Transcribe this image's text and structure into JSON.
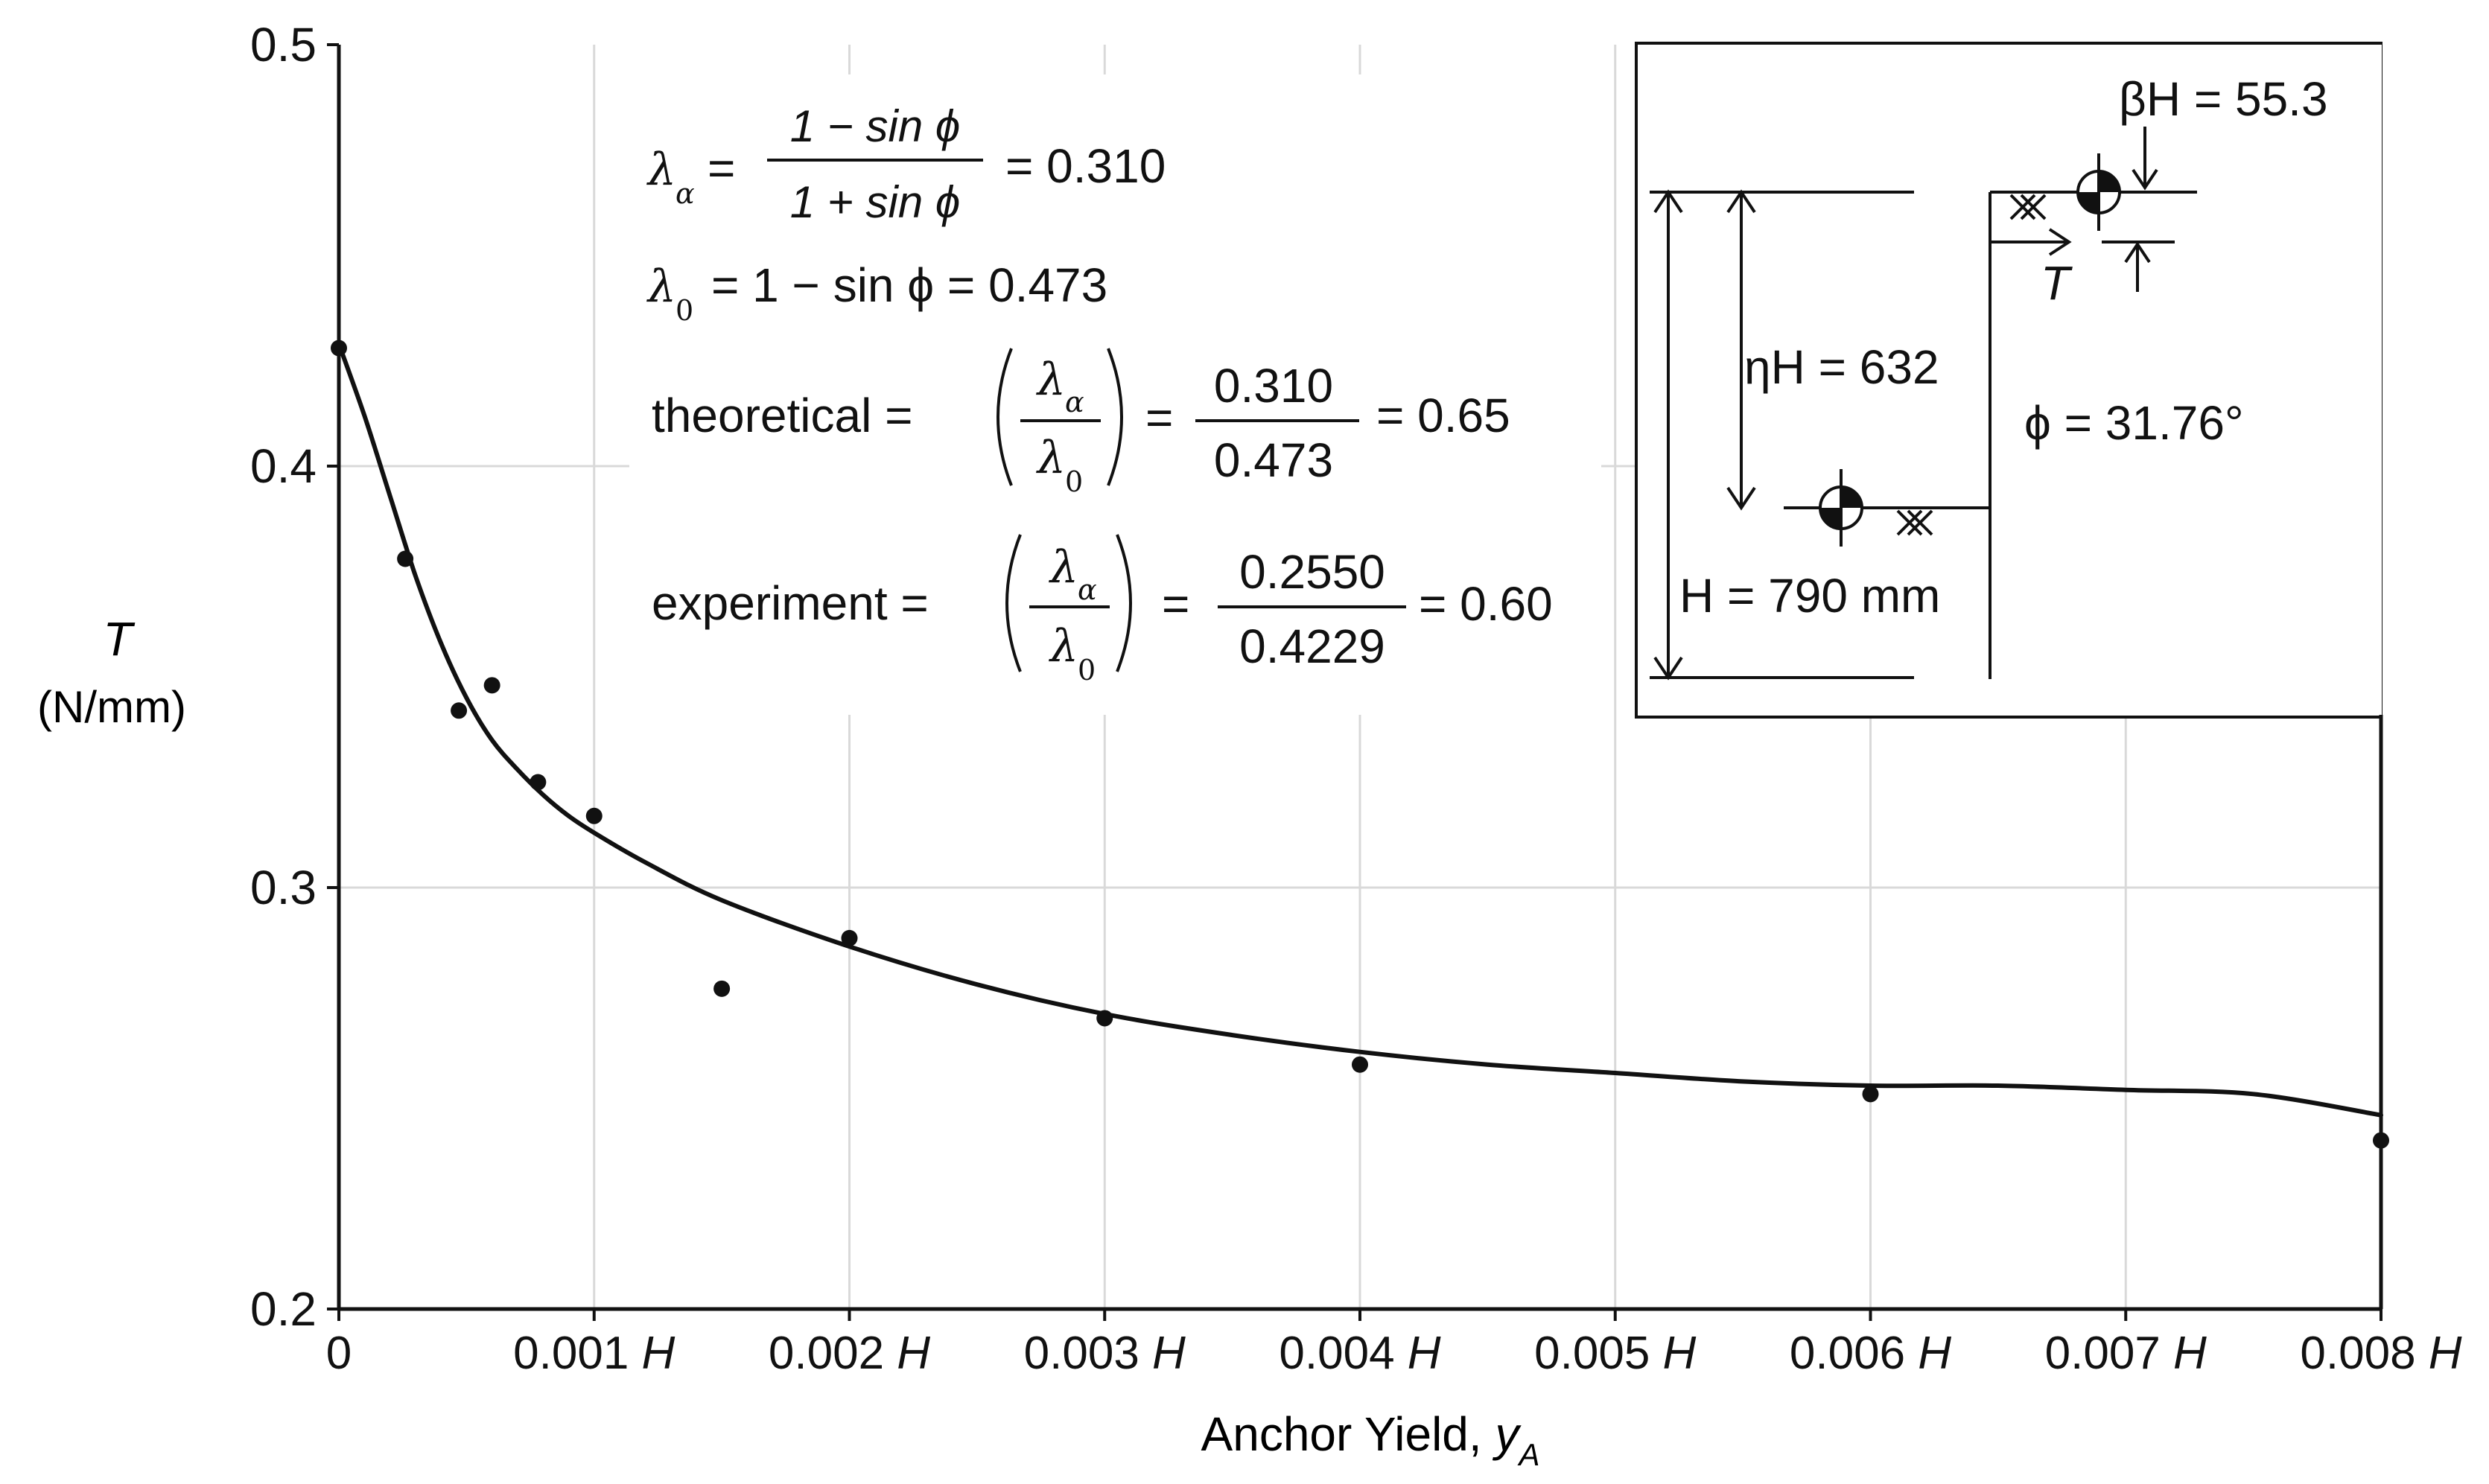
{
  "chart_data": {
    "type": "scatter",
    "title": "",
    "ylabel": "T",
    "ylabel_unit": "(N/mm)",
    "xlabel": "Anchor Yield, ",
    "xlabel_var": "y",
    "xlabel_sub": "A",
    "xlim": [
      0,
      0.008
    ],
    "ylim": [
      0.2,
      0.5
    ],
    "grid": true,
    "x_ticks": [
      {
        "value": 0,
        "num": "0",
        "unit": ""
      },
      {
        "value": 0.001,
        "num": "0.001",
        "unit": "H"
      },
      {
        "value": 0.002,
        "num": "0.002",
        "unit": "H"
      },
      {
        "value": 0.003,
        "num": "0.003",
        "unit": "H"
      },
      {
        "value": 0.004,
        "num": "0.004",
        "unit": "H"
      },
      {
        "value": 0.005,
        "num": "0.005",
        "unit": "H"
      },
      {
        "value": 0.006,
        "num": "0.006",
        "unit": "H"
      },
      {
        "value": 0.007,
        "num": "0.007",
        "unit": "H"
      },
      {
        "value": 0.008,
        "num": "0.008",
        "unit": "H"
      }
    ],
    "y_ticks": [
      {
        "value": 0.2,
        "label": "0.2"
      },
      {
        "value": 0.3,
        "label": "0.3"
      },
      {
        "value": 0.4,
        "label": "0.4"
      },
      {
        "value": 0.5,
        "label": "0.5"
      }
    ],
    "points": [
      {
        "x": 0.0,
        "y": 0.428
      },
      {
        "x": 0.00026,
        "y": 0.378
      },
      {
        "x": 0.00047,
        "y": 0.342
      },
      {
        "x": 0.0006,
        "y": 0.348
      },
      {
        "x": 0.00078,
        "y": 0.325
      },
      {
        "x": 0.001,
        "y": 0.317
      },
      {
        "x": 0.0015,
        "y": 0.276
      },
      {
        "x": 0.002,
        "y": 0.288
      },
      {
        "x": 0.003,
        "y": 0.269
      },
      {
        "x": 0.004,
        "y": 0.258
      },
      {
        "x": 0.006,
        "y": 0.251
      },
      {
        "x": 0.008,
        "y": 0.24
      }
    ],
    "curve": [
      {
        "x": 0.0,
        "y": 0.429
      },
      {
        "x": 0.0001,
        "y": 0.412
      },
      {
        "x": 0.0002,
        "y": 0.393
      },
      {
        "x": 0.0003,
        "y": 0.374
      },
      {
        "x": 0.0004,
        "y": 0.358
      },
      {
        "x": 0.0005,
        "y": 0.345
      },
      {
        "x": 0.0006,
        "y": 0.335
      },
      {
        "x": 0.0007,
        "y": 0.328
      },
      {
        "x": 0.0008,
        "y": 0.322
      },
      {
        "x": 0.0009,
        "y": 0.317
      },
      {
        "x": 0.001,
        "y": 0.313
      },
      {
        "x": 0.0012,
        "y": 0.306
      },
      {
        "x": 0.0015,
        "y": 0.297
      },
      {
        "x": 0.002,
        "y": 0.286
      },
      {
        "x": 0.0025,
        "y": 0.277
      },
      {
        "x": 0.003,
        "y": 0.27
      },
      {
        "x": 0.0035,
        "y": 0.265
      },
      {
        "x": 0.004,
        "y": 0.261
      },
      {
        "x": 0.0045,
        "y": 0.258
      },
      {
        "x": 0.005,
        "y": 0.256
      },
      {
        "x": 0.0055,
        "y": 0.254
      },
      {
        "x": 0.006,
        "y": 0.253
      },
      {
        "x": 0.0065,
        "y": 0.253
      },
      {
        "x": 0.007,
        "y": 0.252
      },
      {
        "x": 0.0075,
        "y": 0.251
      },
      {
        "x": 0.008,
        "y": 0.246
      }
    ],
    "annotations": {
      "lambda_a_lhs": "λ",
      "lambda_a_sub": "α",
      "lambda_a_num": "1 − sin ϕ",
      "lambda_a_den": "1 + sin ϕ",
      "lambda_a_result": "= 0.310",
      "lambda_0_lhs": "λ",
      "lambda_0_sub": "0",
      "lambda_0_rhs": "= 1 − sin ϕ = 0.473",
      "theoretical_label": "theoretical =",
      "theoretical_frac_num": "0.310",
      "theoretical_frac_den": "0.473",
      "theoretical_result": "= 0.65",
      "experiment_label": "experiment =",
      "experiment_frac_num": "0.2550",
      "experiment_frac_den": "0.4229",
      "experiment_result": "= 0.60",
      "equals": "="
    },
    "inset": {
      "beta_label": "βH = 55.3",
      "eta_label": "ηH = 632",
      "phi_label": "ϕ = 31.76°",
      "h_label": "H = 790 mm",
      "t_label": "T"
    }
  }
}
